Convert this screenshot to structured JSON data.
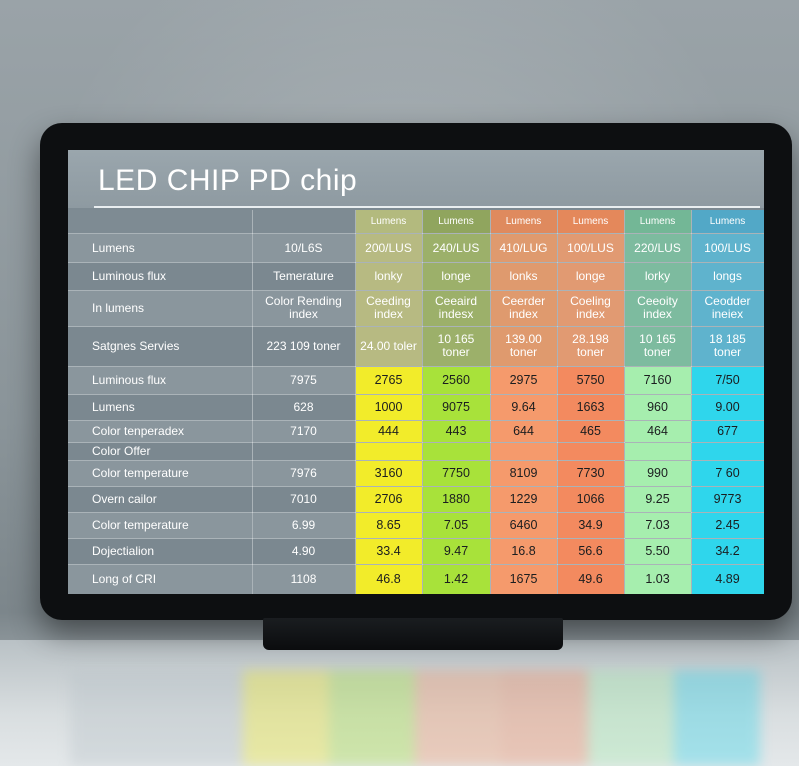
{
  "title": "LED CHIP PD chip",
  "colors": {
    "col1_header": "#b3ba7e",
    "col2_header": "#90a55e",
    "col3_header": "#df8a5e",
    "col4_header": "#e4885b",
    "col5_header": "#73b796",
    "col6_header": "#52a8c7",
    "col1_top": "#b7ba82",
    "col2_top": "#9cb06a",
    "col3_top": "#df9a6e",
    "col4_top": "#e19a72",
    "col5_top": "#7dbb9f",
    "col6_top": "#5fb3cd",
    "col1_data": "#f2ec2a",
    "col2_data": "#a8e23a",
    "col3_data": "#f59a6c",
    "col4_data": "#f38a5f",
    "col5_data": "#a6eeae",
    "col6_data": "#2fd6ec"
  },
  "columns": [
    "Lumens",
    "Lumens",
    "Lumens",
    "Lumens",
    "Lumens",
    "Lumens"
  ],
  "rows": [
    {
      "label": "Lumens",
      "value": "10/L6S",
      "cells": [
        "200/LUS",
        "240/LUS",
        "410/LUG",
        "100/LUS",
        "220/LUS",
        "100/LUS"
      ]
    },
    {
      "label": "Luminous flux",
      "value": "Temerature",
      "cells": [
        "lonky",
        "longe",
        "lonks",
        "longe",
        "lorky",
        "longs"
      ]
    },
    {
      "label": "In lumens",
      "value": "Color Rending index",
      "cells": [
        "Ceeding index",
        "Ceeaird indesx",
        "Ceerder index",
        "Coeling index",
        "Ceeoity index",
        "Ceodder ineiex"
      ]
    },
    {
      "label": "Satgnes Servies",
      "value": "223 109 toner",
      "cells": [
        "24.00 toler",
        "10 165 toner",
        "139.00 toner",
        "28.198 toner",
        "10 165 toner",
        "18 185 toner"
      ]
    },
    {
      "label": "Luminous flux",
      "value": "7975",
      "cells": [
        "2765",
        "2560",
        "2975",
        "5750",
        "7160",
        "7/50"
      ]
    },
    {
      "label": "Lumens",
      "value": "628",
      "cells": [
        "1000",
        "9075",
        "9.64",
        "1663",
        "960",
        "9.00"
      ]
    },
    {
      "label": "Color tenperadex",
      "value": "7170",
      "cells": [
        "444",
        "443",
        "644",
        "465",
        "464",
        "677"
      ]
    },
    {
      "label": "Color Offer",
      "value": "",
      "cells": [
        "",
        "",
        "",
        "",
        "",
        ""
      ]
    },
    {
      "label": "Color temperature",
      "value": "7976",
      "cells": [
        "3160",
        "7750",
        "8109",
        "7730",
        "990",
        "7 60"
      ]
    },
    {
      "label": "Overn cailor",
      "value": "7010",
      "cells": [
        "2706",
        "1880",
        "1229",
        "1066",
        "9.25",
        "9773"
      ]
    },
    {
      "label": "Color temperature",
      "value": "6.99",
      "cells": [
        "8.65",
        "7.05",
        "6460",
        "34.9",
        "7.03",
        "2.45"
      ]
    },
    {
      "label": "Dojectialion",
      "value": "4.90",
      "cells": [
        "33.4",
        "9.47",
        "16.8",
        "56.6",
        "5.50",
        "34.2"
      ]
    },
    {
      "label": "Long of CRI",
      "value": "1108",
      "cells": [
        "46.8",
        "1.42",
        "1675",
        "49.6",
        "1.03",
        "4.89"
      ]
    }
  ]
}
